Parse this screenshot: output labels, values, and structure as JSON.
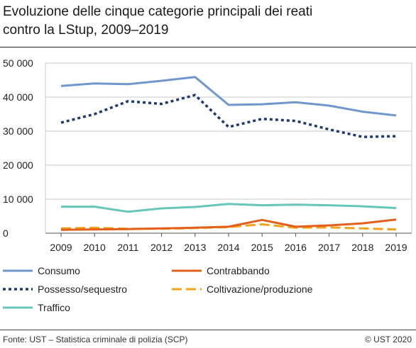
{
  "title_lines": [
    "Evoluzione delle cinque categorie principali dei reati",
    "contro la LStup, 2009–2019"
  ],
  "source": "Fonte: UST – Statistica criminale di polizia (SCP)",
  "copyright": "© UST 2020",
  "chart_data": {
    "type": "line",
    "title": "Evoluzione delle cinque categorie principali dei reati contro la LStup, 2009–2019",
    "x": [
      2009,
      2010,
      2011,
      2012,
      2013,
      2014,
      2015,
      2016,
      2017,
      2018,
      2019
    ],
    "ylim": [
      0,
      50000
    ],
    "yticks": [
      0,
      10000,
      20000,
      30000,
      40000,
      50000
    ],
    "ytick_labels": [
      "0",
      "10 000",
      "20 000",
      "30 000",
      "40 000",
      "50 000"
    ],
    "grid": "horizontal",
    "legend_position": "bottom",
    "series": [
      {
        "name": "Consumo",
        "color": "#6f97cc",
        "style": "solid",
        "values": [
          43300,
          44000,
          43800,
          44800,
          45900,
          37700,
          37900,
          38500,
          37500,
          35700,
          34600
        ]
      },
      {
        "name": "Contrabbando",
        "color": "#e2601c",
        "style": "solid",
        "values": [
          1000,
          1100,
          1200,
          1400,
          1600,
          1900,
          3900,
          1900,
          2300,
          2900,
          4000
        ]
      },
      {
        "name": "Possesso/sequestro",
        "color": "#1f3a6b",
        "style": "dotted",
        "values": [
          32500,
          35000,
          38800,
          38000,
          40600,
          31200,
          33600,
          33000,
          30500,
          28300,
          28500
        ]
      },
      {
        "name": "Coltivazione/produzione",
        "color": "#f2a31b",
        "style": "dashed",
        "values": [
          1400,
          1600,
          1300,
          1300,
          1500,
          1800,
          2600,
          1600,
          1700,
          1400,
          1100
        ]
      },
      {
        "name": "Traffico",
        "color": "#66c6b9",
        "style": "solid",
        "values": [
          7800,
          7800,
          6300,
          7300,
          7700,
          8600,
          8200,
          8400,
          8200,
          7900,
          7400
        ]
      }
    ]
  }
}
